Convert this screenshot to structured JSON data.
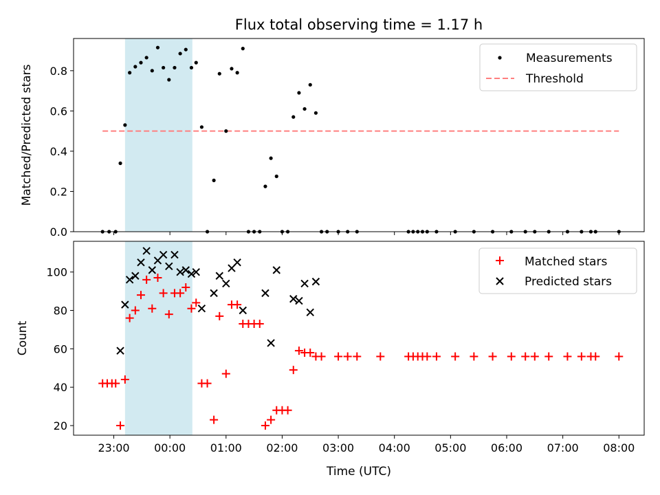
{
  "title": "Flux total observing time = 1.17 h",
  "xlabel": "Time (UTC)",
  "colors": {
    "measurement": "#000000",
    "threshold": "#ff7f7f",
    "matched": "#ff0000",
    "predicted": "#000000",
    "highlight": "#add8e6"
  },
  "chart_data": [
    {
      "type": "scatter",
      "ylabel": "Matched/Predicted stars",
      "ylim": [
        0,
        0.96
      ],
      "yticks": [
        0.0,
        0.2,
        0.4,
        0.6,
        0.8
      ],
      "ytick_labels": [
        "0.0",
        "0.2",
        "0.4",
        "0.6",
        "0.8"
      ],
      "xlim": [
        "22:17",
        "08:27"
      ],
      "highlight_span": [
        "23:12",
        "00:24"
      ],
      "legend": {
        "placement": "upper-right",
        "measurements": "Measurements",
        "threshold": "Threshold"
      },
      "threshold": {
        "value": 0.5,
        "x_range": [
          "22:48",
          "08:00"
        ]
      },
      "series": [
        {
          "name": "Measurements",
          "points": [
            [
              "22:48",
              0.0
            ],
            [
              "22:55",
              0.0
            ],
            [
              "23:02",
              0.0
            ],
            [
              "23:07",
              0.34
            ],
            [
              "23:12",
              0.53
            ],
            [
              "23:17",
              0.79
            ],
            [
              "23:23",
              0.82
            ],
            [
              "23:29",
              0.84
            ],
            [
              "23:35",
              0.865
            ],
            [
              "23:41",
              0.8
            ],
            [
              "23:47",
              0.915
            ],
            [
              "23:53",
              0.815
            ],
            [
              "23:59",
              0.755
            ],
            [
              "00:05",
              0.815
            ],
            [
              "00:11",
              0.885
            ],
            [
              "00:17",
              0.905
            ],
            [
              "00:23",
              0.815
            ],
            [
              "00:28",
              0.84
            ],
            [
              "00:34",
              0.52
            ],
            [
              "00:40",
              0.0
            ],
            [
              "00:47",
              0.255
            ],
            [
              "00:53",
              0.785
            ],
            [
              "01:00",
              0.5
            ],
            [
              "01:06",
              0.81
            ],
            [
              "01:12",
              0.79
            ],
            [
              "01:18",
              0.91
            ],
            [
              "01:24",
              0.0
            ],
            [
              "01:30",
              0.0
            ],
            [
              "01:36",
              0.0
            ],
            [
              "01:42",
              0.225
            ],
            [
              "01:48",
              0.365
            ],
            [
              "01:54",
              0.275
            ],
            [
              "02:00",
              0.0
            ],
            [
              "02:06",
              0.0
            ],
            [
              "02:12",
              0.57
            ],
            [
              "02:18",
              0.69
            ],
            [
              "02:24",
              0.61
            ],
            [
              "02:30",
              0.73
            ],
            [
              "02:36",
              0.59
            ],
            [
              "02:42",
              0.0
            ],
            [
              "02:48",
              0.0
            ],
            [
              "03:00",
              0.0
            ],
            [
              "03:10",
              0.0
            ],
            [
              "03:20",
              0.0
            ],
            [
              "04:15",
              0.0
            ],
            [
              "04:20",
              0.0
            ],
            [
              "04:25",
              0.0
            ],
            [
              "04:30",
              0.0
            ],
            [
              "04:35",
              0.0
            ],
            [
              "04:45",
              0.0
            ],
            [
              "05:05",
              0.0
            ],
            [
              "05:25",
              0.0
            ],
            [
              "05:45",
              0.0
            ],
            [
              "06:05",
              0.0
            ],
            [
              "06:20",
              0.0
            ],
            [
              "06:30",
              0.0
            ],
            [
              "06:45",
              0.0
            ],
            [
              "07:05",
              0.0
            ],
            [
              "07:20",
              0.0
            ],
            [
              "07:30",
              0.0
            ],
            [
              "07:35",
              0.0
            ],
            [
              "08:00",
              0.0
            ]
          ]
        }
      ]
    },
    {
      "type": "scatter",
      "ylabel": "Count",
      "ylim": [
        15,
        116
      ],
      "yticks": [
        20,
        40,
        60,
        80,
        100
      ],
      "ytick_labels": [
        "20",
        "40",
        "60",
        "80",
        "100"
      ],
      "xlim": [
        "22:17",
        "08:27"
      ],
      "xticks": [
        "23:00",
        "00:00",
        "01:00",
        "02:00",
        "03:00",
        "04:00",
        "05:00",
        "06:00",
        "07:00",
        "08:00"
      ],
      "highlight_span": [
        "23:12",
        "00:24"
      ],
      "legend": {
        "placement": "upper-right"
      },
      "series": [
        {
          "name": "Matched stars",
          "marker": "plus",
          "points": [
            [
              "22:48",
              42
            ],
            [
              "22:53",
              42
            ],
            [
              "22:58",
              42
            ],
            [
              "23:02",
              42
            ],
            [
              "23:07",
              20
            ],
            [
              "23:12",
              44
            ],
            [
              "23:17",
              76
            ],
            [
              "23:23",
              80
            ],
            [
              "23:29",
              88
            ],
            [
              "23:35",
              96
            ],
            [
              "23:41",
              81
            ],
            [
              "23:47",
              97
            ],
            [
              "23:53",
              89
            ],
            [
              "23:59",
              78
            ],
            [
              "00:05",
              89
            ],
            [
              "00:11",
              89
            ],
            [
              "00:17",
              92
            ],
            [
              "00:23",
              81
            ],
            [
              "00:28",
              84
            ],
            [
              "00:34",
              42
            ],
            [
              "00:40",
              42
            ],
            [
              "00:47",
              23
            ],
            [
              "00:53",
              77
            ],
            [
              "01:00",
              47
            ],
            [
              "01:06",
              83
            ],
            [
              "01:12",
              83
            ],
            [
              "01:18",
              73
            ],
            [
              "01:24",
              73
            ],
            [
              "01:30",
              73
            ],
            [
              "01:36",
              73
            ],
            [
              "01:42",
              20
            ],
            [
              "01:48",
              23
            ],
            [
              "01:54",
              28
            ],
            [
              "02:00",
              28
            ],
            [
              "02:06",
              28
            ],
            [
              "02:12",
              49
            ],
            [
              "02:18",
              59
            ],
            [
              "02:24",
              58
            ],
            [
              "02:30",
              58
            ],
            [
              "02:36",
              56
            ],
            [
              "02:42",
              56
            ],
            [
              "03:00",
              56
            ],
            [
              "03:10",
              56
            ],
            [
              "03:20",
              56
            ],
            [
              "03:45",
              56
            ],
            [
              "04:15",
              56
            ],
            [
              "04:20",
              56
            ],
            [
              "04:25",
              56
            ],
            [
              "04:30",
              56
            ],
            [
              "04:35",
              56
            ],
            [
              "04:45",
              56
            ],
            [
              "05:05",
              56
            ],
            [
              "05:25",
              56
            ],
            [
              "05:45",
              56
            ],
            [
              "06:05",
              56
            ],
            [
              "06:20",
              56
            ],
            [
              "06:30",
              56
            ],
            [
              "06:45",
              56
            ],
            [
              "07:05",
              56
            ],
            [
              "07:20",
              56
            ],
            [
              "07:30",
              56
            ],
            [
              "07:35",
              56
            ],
            [
              "08:00",
              56
            ]
          ]
        },
        {
          "name": "Predicted stars",
          "marker": "x",
          "points": [
            [
              "23:07",
              59
            ],
            [
              "23:12",
              83
            ],
            [
              "23:17",
              96
            ],
            [
              "23:23",
              98
            ],
            [
              "23:29",
              105
            ],
            [
              "23:35",
              111
            ],
            [
              "23:41",
              101
            ],
            [
              "23:47",
              106
            ],
            [
              "23:53",
              109
            ],
            [
              "23:59",
              103
            ],
            [
              "00:05",
              109
            ],
            [
              "00:11",
              100
            ],
            [
              "00:17",
              101
            ],
            [
              "00:23",
              99
            ],
            [
              "00:28",
              100
            ],
            [
              "00:34",
              81
            ],
            [
              "00:47",
              89
            ],
            [
              "00:53",
              98
            ],
            [
              "01:00",
              94
            ],
            [
              "01:06",
              102
            ],
            [
              "01:12",
              105
            ],
            [
              "01:18",
              80
            ],
            [
              "01:42",
              89
            ],
            [
              "01:48",
              63
            ],
            [
              "01:54",
              101
            ],
            [
              "02:12",
              86
            ],
            [
              "02:18",
              85
            ],
            [
              "02:24",
              94
            ],
            [
              "02:30",
              79
            ],
            [
              "02:36",
              95
            ]
          ]
        }
      ]
    }
  ]
}
